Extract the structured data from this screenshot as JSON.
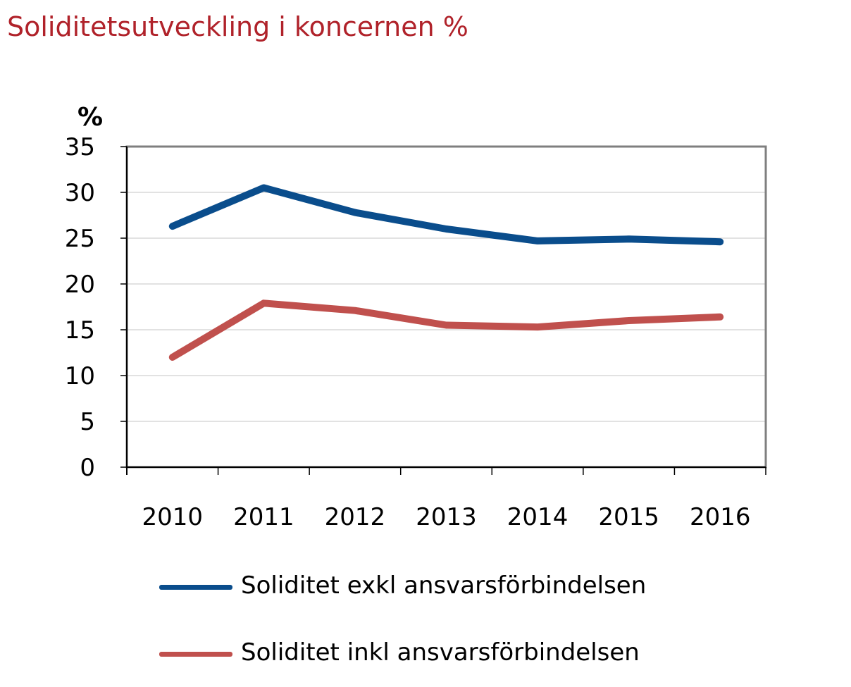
{
  "chart_data": {
    "type": "line",
    "title": "Soliditetsutveckling i koncernen %",
    "ylabel": "%",
    "xlabel": "",
    "x": [
      "2010",
      "2011",
      "2012",
      "2013",
      "2014",
      "2015",
      "2016"
    ],
    "ylim": [
      0,
      35
    ],
    "yticks": [
      "0",
      "5",
      "10",
      "15",
      "20",
      "25",
      "30",
      "35"
    ],
    "grid": true,
    "legend_position": "bottom",
    "series": [
      {
        "name": "Soliditet exkl ansvarsförbindelsen",
        "color": "#0a4d8c",
        "values": [
          26.3,
          30.5,
          27.8,
          26.0,
          24.7,
          24.9,
          24.6
        ]
      },
      {
        "name": "Soliditet inkl ansvarsförbindelsen",
        "color": "#c0504d",
        "values": [
          12.0,
          17.9,
          17.1,
          15.5,
          15.3,
          16.0,
          16.4
        ]
      }
    ]
  }
}
